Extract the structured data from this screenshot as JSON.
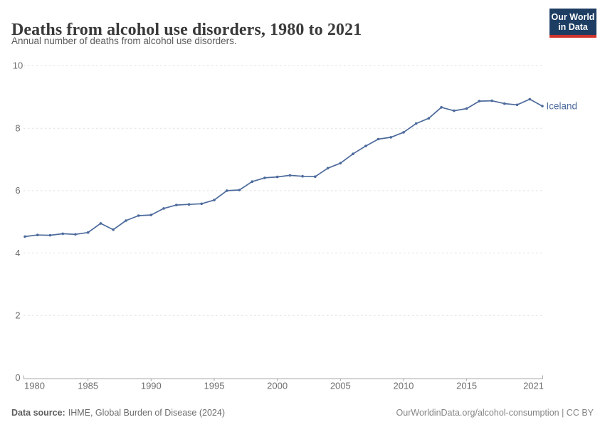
{
  "header": {
    "title": "Deaths from alcohol use disorders, 1980 to 2021",
    "subtitle": "Annual number of deaths from alcohol use disorders.",
    "logo": {
      "line1": "Our World",
      "line2": "in Data"
    }
  },
  "chart_data": {
    "type": "line",
    "title": "Deaths from alcohol use disorders, 1980 to 2021",
    "subtitle": "Annual number of deaths from alcohol use disorders.",
    "x": [
      1980,
      1981,
      1982,
      1983,
      1984,
      1985,
      1986,
      1987,
      1988,
      1989,
      1990,
      1991,
      1992,
      1993,
      1994,
      1995,
      1996,
      1997,
      1998,
      1999,
      2000,
      2001,
      2002,
      2003,
      2004,
      2005,
      2006,
      2007,
      2008,
      2009,
      2010,
      2011,
      2012,
      2013,
      2014,
      2015,
      2016,
      2017,
      2018,
      2019,
      2020,
      2021
    ],
    "series": [
      {
        "name": "Iceland",
        "color": "#4c6a9c",
        "values": [
          4.53,
          4.58,
          4.57,
          4.62,
          4.6,
          4.66,
          4.95,
          4.75,
          5.04,
          5.2,
          5.22,
          5.43,
          5.54,
          5.56,
          5.58,
          5.7,
          6.0,
          6.02,
          6.29,
          6.41,
          6.44,
          6.49,
          6.46,
          6.45,
          6.72,
          6.88,
          7.18,
          7.43,
          7.65,
          7.71,
          7.87,
          8.15,
          8.32,
          8.67,
          8.56,
          8.63,
          8.87,
          8.88,
          8.79,
          8.75,
          8.93,
          8.71
        ]
      }
    ],
    "xlabel": "",
    "ylabel": "",
    "ylim": [
      0,
      10
    ],
    "yticks": [
      0,
      2,
      4,
      6,
      8,
      10
    ],
    "xticks": [
      1980,
      1985,
      1990,
      1995,
      2000,
      2005,
      2010,
      2015,
      2021
    ],
    "grid": "horizontal-dashed",
    "legend": "end-of-line-label"
  },
  "footer": {
    "source_label": "Data source:",
    "source_value": "IHME, Global Burden of Disease (2024)",
    "credit": "OurWorldinData.org/alcohol-consumption | CC BY"
  },
  "colors": {
    "line": "#4c6a9c",
    "grid": "#e1e1e1",
    "axis": "#a8a8a8",
    "tick_label": "#6e6e6e",
    "logo_bg": "#1d3d63",
    "logo_accent": "#cf342c"
  }
}
